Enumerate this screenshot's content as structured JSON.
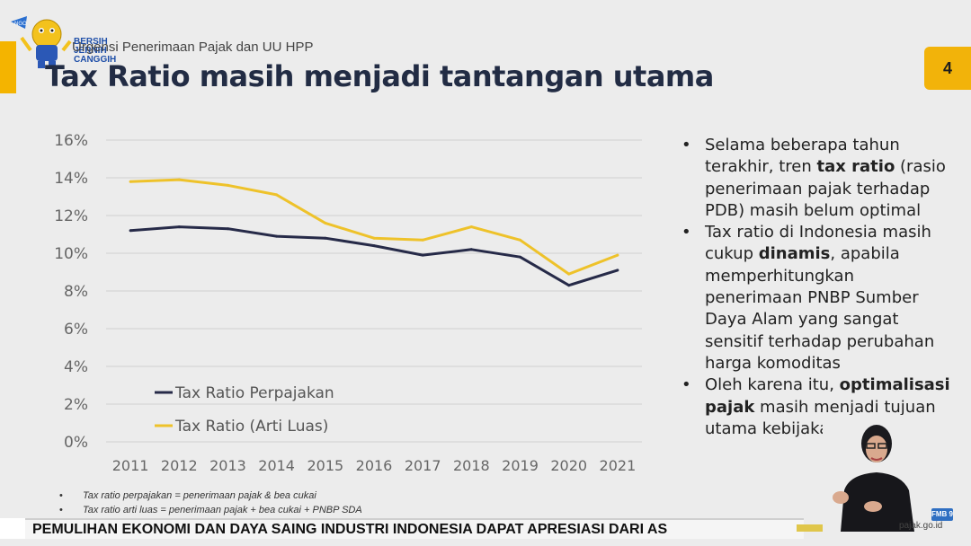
{
  "logo": {
    "lines": [
      "BERSIH",
      "JERNIH",
      "CANGGIH"
    ],
    "badge": "NGO"
  },
  "header": {
    "subtitle": "Urgensi Penerimaan Pajak dan UU HPP",
    "title": "Tax Ratio masih menjadi tantangan utama",
    "page_number": "4"
  },
  "colors": {
    "accent": "#f2b30a",
    "series_dark": "#262a48",
    "series_gold": "#eec22a",
    "title": "#222c44"
  },
  "chart_data": {
    "type": "line",
    "x": [
      "2011",
      "2012",
      "2013",
      "2014",
      "2015",
      "2016",
      "2017",
      "2018",
      "2019",
      "2020",
      "2021"
    ],
    "yticks": [
      "16%",
      "14%",
      "12%",
      "10%",
      "8%",
      "6%",
      "4%",
      "2%",
      "0%"
    ],
    "ylim": [
      0,
      16
    ],
    "grid": true,
    "legend_position": "lower-left",
    "series": [
      {
        "name": "Tax Ratio Perpajakan",
        "color": "#262a48",
        "values": [
          11.2,
          11.4,
          11.3,
          10.9,
          10.8,
          10.4,
          9.9,
          10.2,
          9.8,
          8.3,
          9.1
        ]
      },
      {
        "name": "Tax Ratio (Arti Luas)",
        "color": "#eec22a",
        "values": [
          13.8,
          13.9,
          13.6,
          13.1,
          11.6,
          10.8,
          10.7,
          11.4,
          10.7,
          8.9,
          9.9
        ]
      }
    ]
  },
  "bullets": [
    {
      "dot": "•",
      "parts": [
        {
          "text": "Selama beberapa tahun terakhir, tren "
        },
        {
          "text": "tax ratio",
          "bold": true
        },
        {
          "text": " (rasio penerimaan pajak terhadap PDB) masih belum optimal"
        }
      ]
    },
    {
      "dot": "•",
      "parts": [
        {
          "text": "Tax ratio di Indonesia masih cukup "
        },
        {
          "text": "dinamis",
          "bold": true
        },
        {
          "text": ", apabila memperhitungkan penerimaan PNBP Sumber Daya Alam yang sangat sensitif terhadap perubahan harga komoditas"
        }
      ]
    },
    {
      "dot": "•",
      "parts": [
        {
          "text": "Oleh karena itu, "
        },
        {
          "text": "optimalisasi pajak",
          "bold": true
        },
        {
          "text": " masih menjadi tujuan utama kebijakan fiskal."
        }
      ]
    }
  ],
  "footnotes": [
    {
      "dot": "•",
      "text": "Tax ratio perpajakan = penerimaan pajak & bea cukai"
    },
    {
      "dot": "•",
      "text": "Tax ratio arti luas = penerimaan pajak + bea cukai + PNBP SDA"
    }
  ],
  "ticker": {
    "text": "PEMULIHAN EKONOMI DAN DAYA SAING INDUSTRI INDONESIA DAPAT APRESIASI DARI AS"
  },
  "overlay": {
    "site": "pajak.go.id",
    "fmb": "FMB 9"
  }
}
